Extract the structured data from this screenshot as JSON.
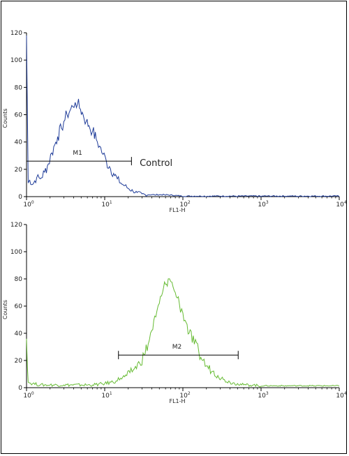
{
  "chart_data": [
    {
      "type": "line",
      "title": "",
      "xlabel": "FL1-H",
      "ylabel": "Counts",
      "x_scale": "log",
      "xlim": [
        1,
        10000
      ],
      "ylim": [
        0,
        120
      ],
      "x_ticks": [
        1,
        10,
        100,
        1000,
        10000
      ],
      "x_tick_labels": [
        {
          "base": "10",
          "exp": "0"
        },
        {
          "base": "10",
          "exp": "1"
        },
        {
          "base": "10",
          "exp": "2"
        },
        {
          "base": "10",
          "exp": "3"
        },
        {
          "base": "10",
          "exp": "4"
        }
      ],
      "y_ticks": [
        0,
        20,
        40,
        60,
        80,
        100,
        120
      ],
      "y_tick_labels": [
        "0",
        "20",
        "40",
        "60",
        "80",
        "100",
        "120"
      ],
      "grid": false,
      "series": [
        {
          "color": "#1f3c99",
          "x": [
            1.0,
            1.05,
            1.1,
            1.2,
            1.35,
            1.5,
            1.7,
            1.9,
            2.1,
            2.3,
            2.5,
            2.8,
            3.0,
            3.3,
            3.6,
            3.9,
            4.2,
            4.5,
            4.9,
            5.3,
            5.8,
            6.3,
            7.0,
            7.8,
            8.6,
            9.5,
            10.5,
            11.5,
            13,
            14.5,
            16,
            18,
            20,
            23,
            26,
            30,
            35,
            45,
            60,
            100,
            200,
            500,
            1000,
            3000,
            10000
          ],
          "y": [
            118,
            10,
            12,
            9,
            14,
            13,
            18,
            24,
            32,
            38,
            44,
            50,
            55,
            60,
            63,
            66,
            69,
            68,
            64,
            60,
            55,
            52,
            48,
            42,
            37,
            31,
            26,
            22,
            17,
            13,
            10,
            8,
            6,
            4,
            3,
            2,
            1,
            1,
            1,
            0,
            0,
            0,
            0,
            0,
            0
          ]
        }
      ],
      "annotations": [
        {
          "text": "M1",
          "x_start": 1.0,
          "x_end": 22,
          "y": 26
        },
        {
          "text": "Control",
          "x": 28,
          "y": 25
        }
      ]
    },
    {
      "type": "line",
      "title": "",
      "xlabel": "FL1-H",
      "ylabel": "Counts",
      "x_scale": "log",
      "xlim": [
        1,
        10000
      ],
      "ylim": [
        0,
        120
      ],
      "x_ticks": [
        1,
        10,
        100,
        1000,
        10000
      ],
      "x_tick_labels": [
        {
          "base": "10",
          "exp": "0"
        },
        {
          "base": "10",
          "exp": "1"
        },
        {
          "base": "10",
          "exp": "2"
        },
        {
          "base": "10",
          "exp": "3"
        },
        {
          "base": "10",
          "exp": "4"
        }
      ],
      "y_ticks": [
        0,
        20,
        40,
        60,
        80,
        100,
        120
      ],
      "y_tick_labels": [
        "0",
        "20",
        "40",
        "60",
        "80",
        "100",
        "120"
      ],
      "grid": false,
      "series": [
        {
          "color": "#66bb33",
          "x": [
            1.0,
            1.05,
            1.2,
            1.5,
            2,
            3,
            5,
            7,
            10,
            12,
            14,
            16,
            18,
            21,
            24,
            28,
            32,
            36,
            40,
            45,
            50,
            55,
            60,
            65,
            70,
            75,
            80,
            85,
            90,
            100,
            110,
            120,
            140,
            160,
            180,
            200,
            240,
            280,
            330,
            400,
            500,
            600,
            800,
            1000,
            2000,
            5000,
            10000
          ],
          "y": [
            36,
            4,
            3,
            2,
            2,
            2,
            2,
            2,
            3,
            4,
            5,
            7,
            8,
            11,
            14,
            18,
            24,
            32,
            42,
            52,
            62,
            70,
            76,
            80,
            78,
            74,
            70,
            66,
            62,
            55,
            48,
            40,
            32,
            26,
            20,
            16,
            12,
            9,
            6,
            4,
            3,
            2,
            2,
            1,
            1,
            1,
            1
          ]
        }
      ],
      "annotations": [
        {
          "text": "M2",
          "x_start": 15,
          "x_end": 510,
          "y": 24
        }
      ]
    }
  ]
}
